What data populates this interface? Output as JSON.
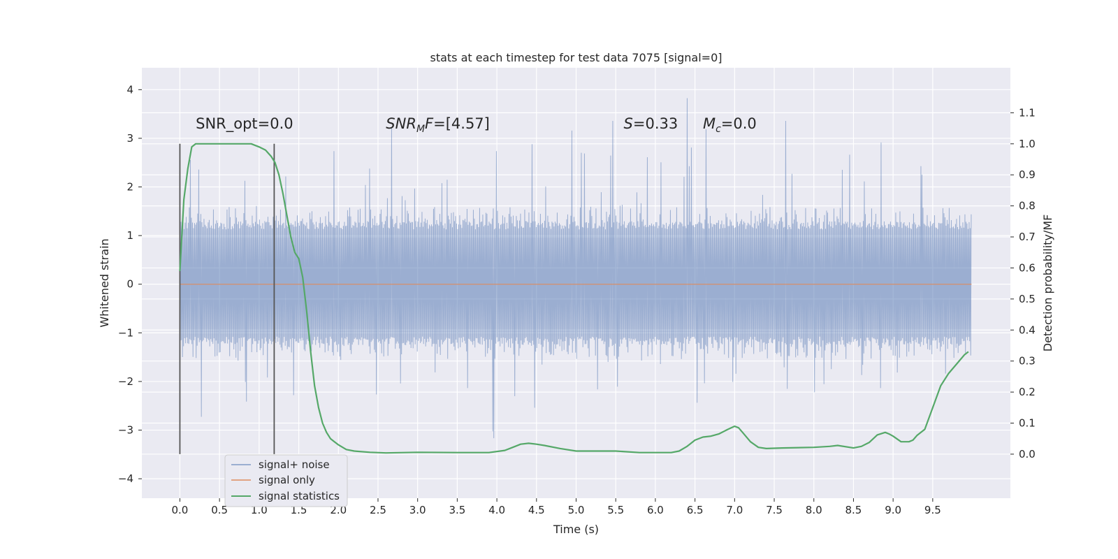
{
  "chart_data": {
    "type": "line",
    "title": "stats at each timestep for test data 7075 [signal=0]",
    "xlabel": "Time (s)",
    "ylabel_left": "Whitened strain",
    "ylabel_right": "Detection probability/MF",
    "xlim": [
      -0.48,
      10.48
    ],
    "ylim_left": [
      -4.4,
      4.45
    ],
    "ylim_right": [
      -0.142,
      1.245
    ],
    "x_ticks": [
      0.0,
      0.5,
      1.0,
      1.5,
      2.0,
      2.5,
      3.0,
      3.5,
      4.0,
      4.5,
      5.0,
      5.5,
      6.0,
      6.5,
      7.0,
      7.5,
      8.0,
      8.5,
      9.0,
      9.5
    ],
    "x_tick_labels": [
      "0.0",
      "0.5",
      "1.0",
      "1.5",
      "2.0",
      "2.5",
      "3.0",
      "3.5",
      "4.0",
      "4.5",
      "5.0",
      "5.5",
      "6.0",
      "6.5",
      "7.0",
      "7.5",
      "8.0",
      "8.5",
      "9.0",
      "9.5"
    ],
    "y_left_ticks": [
      4,
      3,
      2,
      1,
      0,
      -1,
      -2,
      -3,
      -4
    ],
    "y_left_tick_labels": [
      "4",
      "3",
      "2",
      "1",
      "0",
      "−1",
      "−2",
      "−3",
      "−4"
    ],
    "y_right_ticks": [
      1.1,
      1.0,
      0.9,
      0.8,
      0.7,
      0.6,
      0.5,
      0.4,
      0.3,
      0.2,
      0.1,
      0.0
    ],
    "y_right_tick_labels": [
      "1.1",
      "1.0",
      "0.9",
      "0.8",
      "0.7",
      "0.6",
      "0.5",
      "0.4",
      "0.3",
      "0.2",
      "0.1",
      "0.0"
    ],
    "grid": true,
    "legend_position": "lower-left",
    "series": [
      {
        "name": "signal+ noise",
        "axis": "left",
        "color": "#4c72b0",
        "noise": {
          "x_start": 0.0,
          "x_end": 9.99,
          "band": [
            -1.25,
            1.3
          ],
          "spike_range": [
            -4.0,
            4.05
          ]
        }
      },
      {
        "name": "signal only",
        "axis": "left",
        "color": "#dd8452",
        "x": [
          0.0,
          9.99
        ],
        "y": [
          0.0,
          0.0
        ]
      },
      {
        "name": "signal statistics",
        "axis": "right",
        "color": "#55a868",
        "x": [
          0.0,
          0.05,
          0.1,
          0.15,
          0.2,
          0.3,
          0.5,
          0.7,
          0.9,
          1.0,
          1.08,
          1.15,
          1.2,
          1.25,
          1.3,
          1.35,
          1.4,
          1.45,
          1.5,
          1.55,
          1.6,
          1.65,
          1.7,
          1.75,
          1.8,
          1.85,
          1.9,
          1.95,
          2.0,
          2.1,
          2.2,
          2.4,
          2.6,
          3.0,
          3.5,
          3.9,
          4.1,
          4.2,
          4.3,
          4.4,
          4.5,
          4.6,
          4.8,
          5.0,
          5.3,
          5.5,
          5.8,
          6.0,
          6.2,
          6.3,
          6.4,
          6.5,
          6.6,
          6.7,
          6.8,
          6.9,
          7.0,
          7.05,
          7.1,
          7.2,
          7.3,
          7.4,
          7.6,
          8.0,
          8.2,
          8.3,
          8.5,
          8.6,
          8.7,
          8.8,
          8.9,
          8.95,
          9.0,
          9.1,
          9.2,
          9.25,
          9.3,
          9.4,
          9.5,
          9.6,
          9.7,
          9.8,
          9.9,
          9.95
        ],
        "y": [
          0.59,
          0.82,
          0.92,
          0.99,
          1.0,
          1.0,
          1.0,
          1.0,
          1.0,
          0.99,
          0.98,
          0.96,
          0.94,
          0.9,
          0.84,
          0.77,
          0.7,
          0.65,
          0.63,
          0.57,
          0.46,
          0.33,
          0.22,
          0.15,
          0.1,
          0.07,
          0.05,
          0.04,
          0.03,
          0.015,
          0.01,
          0.006,
          0.004,
          0.006,
          0.005,
          0.005,
          0.012,
          0.022,
          0.032,
          0.035,
          0.032,
          0.028,
          0.018,
          0.01,
          0.01,
          0.01,
          0.005,
          0.005,
          0.005,
          0.01,
          0.025,
          0.045,
          0.055,
          0.058,
          0.065,
          0.078,
          0.09,
          0.085,
          0.07,
          0.04,
          0.022,
          0.018,
          0.02,
          0.022,
          0.025,
          0.028,
          0.02,
          0.025,
          0.038,
          0.062,
          0.07,
          0.065,
          0.058,
          0.04,
          0.04,
          0.045,
          0.06,
          0.08,
          0.15,
          0.22,
          0.26,
          0.29,
          0.32,
          0.33
        ]
      }
    ],
    "vertical_lines": [
      {
        "x": 0.0
      },
      {
        "x": 1.19
      }
    ],
    "annotations": [
      {
        "text": "SNR_opt=0.0",
        "x": 0.2,
        "y": 3.2
      },
      {
        "text": "SNRMF=[4.57]",
        "x": 2.6,
        "y": 3.2
      },
      {
        "text": "S=0.33",
        "x": 5.6,
        "y": 3.2
      },
      {
        "text": "Mc=0.0",
        "x": 6.6,
        "y": 3.2
      }
    ]
  },
  "annotation_parts": {
    "snr_mf": {
      "main": "SNR",
      "sub": "M",
      "rest": "F",
      "value": "=[4.57]"
    },
    "s": {
      "main": "S",
      "value": "=0.33"
    },
    "mc": {
      "main": "M",
      "sub": "c",
      "value": "=0.0"
    }
  },
  "colors": {
    "plot_background": "#eaeaf2",
    "grid": "#ffffff",
    "vertical_line": "#555555",
    "text": "#262626"
  }
}
